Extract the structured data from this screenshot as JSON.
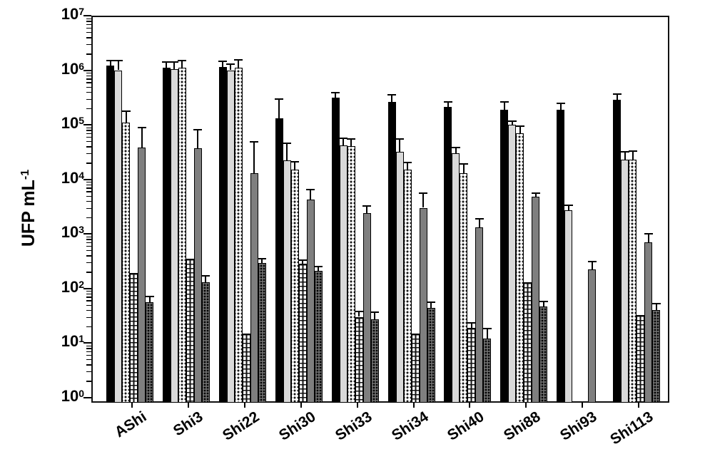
{
  "figure": {
    "y_axis_title": {
      "text": "UFP mL",
      "exponent": "-1"
    },
    "y_tick_base": "10",
    "y_tick_exponents": [
      "7",
      "6",
      "5",
      "4",
      "3",
      "2",
      "1",
      "0"
    ]
  },
  "chart_data": {
    "type": "bar",
    "scale_y": "log10",
    "ylim": [
      1,
      10000000
    ],
    "ylabel": "UFP mL^-1",
    "xlabel": "",
    "title": "",
    "grid": false,
    "legend_position": "none",
    "error_bars": "upper only, black caps",
    "categories": [
      "AShi",
      "Shi3",
      "Shi22",
      "Shi30",
      "Shi33",
      "Shi34",
      "Shi40",
      "Shi88",
      "Shi93",
      "Shi113"
    ],
    "series": [
      {
        "name": "solid-black",
        "pattern": "solid",
        "fill": "#000000",
        "css": "s-black",
        "values": [
          1200000.0,
          1100000.0,
          1150000.0,
          130000.0,
          310000.0,
          260000.0,
          210000.0,
          190000.0,
          190000.0,
          290000.0
        ],
        "error_high": [
          1500000.0,
          1400000.0,
          1450000.0,
          300000.0,
          390000.0,
          350000.0,
          260000.0,
          260000.0,
          250000.0,
          360000.0
        ]
      },
      {
        "name": "light-gray",
        "pattern": "solid",
        "fill": "#d9d9d9",
        "css": "s-lgray",
        "values": [
          1000000.0,
          1050000.0,
          1000000.0,
          22000.0,
          42000.0,
          32000.0,
          30000.0,
          100000.0,
          2700.0,
          23000.0
        ],
        "error_high": [
          1500000.0,
          1400000.0,
          1300000.0,
          46000.0,
          56000.0,
          54000.0,
          38000.0,
          115000.0,
          3300.0,
          32000.0
        ]
      },
      {
        "name": "white-dotted",
        "pattern": "small dark dots on white",
        "fill": "#ffffff",
        "css": "s-dotted",
        "values": [
          110000.0,
          1100000.0,
          1100000.0,
          15000.0,
          40000.0,
          15000.0,
          13000.0,
          70000.0,
          null,
          23000.0
        ],
        "error_high": [
          175000.0,
          1500000.0,
          1550000.0,
          21000.0,
          55000.0,
          20000.0,
          19000.0,
          95000.0,
          null,
          33000.0
        ]
      },
      {
        "name": "white-brick",
        "pattern": "brick/ladder hatch on white",
        "fill": "#ffffff",
        "css": "s-brick",
        "values": [
          190.0,
          350.0,
          15,
          280.0,
          30,
          15,
          19,
          130.0,
          null,
          32
        ],
        "error_high": [
          null,
          null,
          null,
          330.0,
          38,
          null,
          23,
          null,
          null,
          null
        ]
      },
      {
        "name": "medium-gray",
        "pattern": "solid",
        "fill": "#7f7f7f",
        "css": "s-gray",
        "values": [
          38000.0,
          37000.0,
          13000.0,
          4200.0,
          2400.0,
          3000.0,
          1300.0,
          4800.0,
          220.0,
          700.0
        ],
        "error_high": [
          90000.0,
          80000.0,
          48000.0,
          6500.0,
          3200.0,
          5500.0,
          1900.0,
          5600.0,
          310.0,
          1000.0
        ]
      },
      {
        "name": "dark-dotted",
        "pattern": "black dots on dark gray",
        "fill": "#6e6e6e",
        "css": "s-darkdot",
        "values": [
          55,
          130.0,
          290.0,
          210.0,
          27,
          44,
          12,
          47,
          null,
          40
        ],
        "error_high": [
          70,
          170.0,
          350.0,
          250.0,
          36,
          56,
          18,
          58,
          null,
          52
        ]
      }
    ]
  }
}
